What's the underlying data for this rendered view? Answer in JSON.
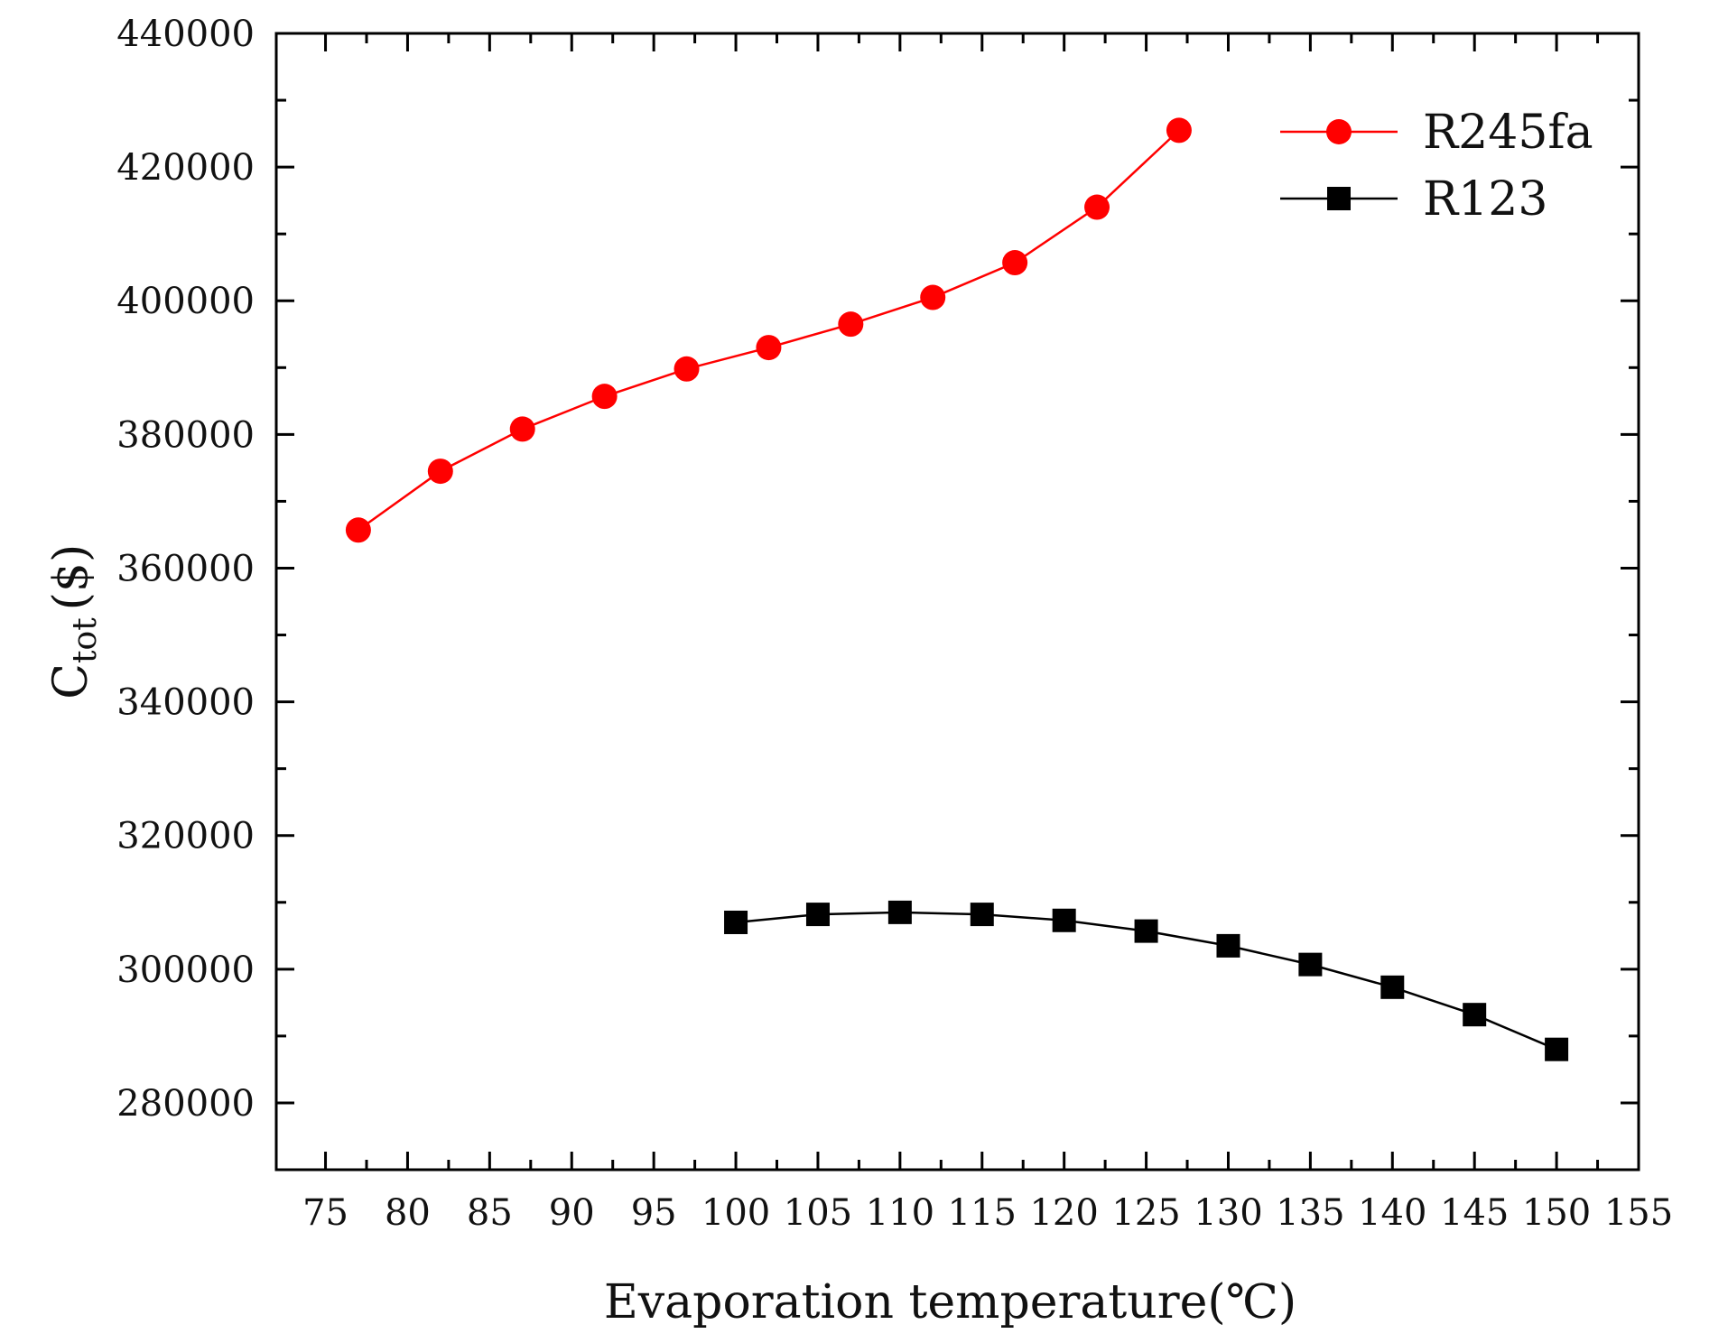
{
  "chart_data": {
    "type": "line",
    "title": "",
    "xlabel": "Evaporation temperature(℃)",
    "ylabel": {
      "main": "C",
      "subscript": "tot",
      "unit": "($)"
    },
    "xlim": [
      72,
      155
    ],
    "ylim": [
      270000,
      440000
    ],
    "xticks": [
      75,
      80,
      85,
      90,
      95,
      100,
      105,
      110,
      115,
      120,
      125,
      130,
      135,
      140,
      145,
      150,
      155
    ],
    "yticks": [
      280000,
      300000,
      320000,
      340000,
      360000,
      380000,
      400000,
      420000,
      440000
    ],
    "grid": false,
    "legend_position": "top-right",
    "series": [
      {
        "name": "R245fa",
        "color": "#ff0000",
        "marker": "circle",
        "x": [
          77,
          82,
          87,
          92,
          97,
          102,
          107,
          112,
          117,
          122,
          127
        ],
        "y": [
          365700,
          374500,
          380800,
          385700,
          389800,
          393000,
          396500,
          400500,
          405700,
          414000,
          425500
        ]
      },
      {
        "name": "R123",
        "color": "#000000",
        "marker": "square",
        "x": [
          100,
          105,
          110,
          115,
          120,
          125,
          130,
          135,
          140,
          145,
          150
        ],
        "y": [
          307000,
          308200,
          308500,
          308200,
          307300,
          305700,
          303500,
          300700,
          297300,
          293200,
          288000
        ]
      }
    ]
  }
}
